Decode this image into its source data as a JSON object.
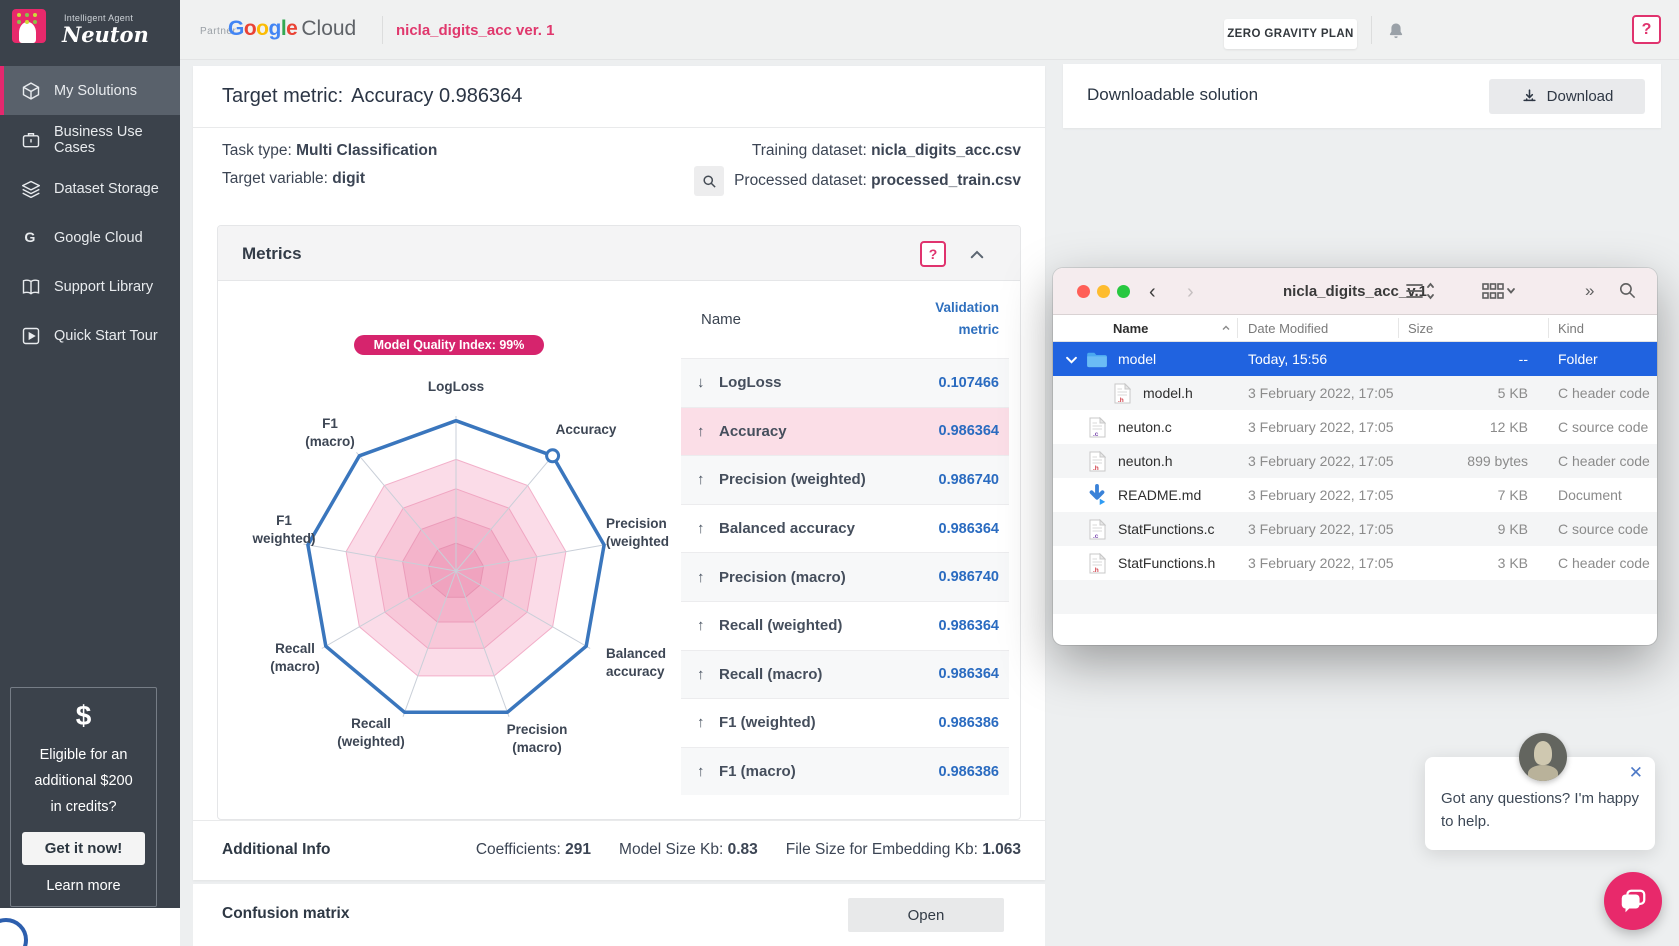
{
  "brand": {
    "logo_small": "Intelligent Agent",
    "logo_name": "Neuton",
    "partner_label": "Partner",
    "google_letters": [
      "G",
      "o",
      "o",
      "g",
      "l",
      "e"
    ],
    "google_colors": [
      "#4285F4",
      "#EA4335",
      "#FBBC05",
      "#4285F4",
      "#34A853",
      "#EA4335"
    ],
    "cloud": "Cloud",
    "project_title": "nicla_digits_acc ver. 1"
  },
  "topbar": {
    "plan_button": "ZERO GRAVITY PLAN",
    "help_button": "?"
  },
  "sidebar": {
    "items": [
      {
        "label": "My Solutions",
        "icon": "cube-icon",
        "active": true
      },
      {
        "label": "Business Use Cases",
        "icon": "briefcase-icon",
        "active": false
      },
      {
        "label": "Dataset Storage",
        "icon": "layers-icon",
        "active": false
      },
      {
        "label": "Google Cloud",
        "icon": "google-g-icon",
        "active": false
      },
      {
        "label": "Support Library",
        "icon": "book-icon",
        "active": false
      },
      {
        "label": "Quick Start Tour",
        "icon": "play-icon",
        "active": false
      }
    ],
    "credits": {
      "icon": "$",
      "text_lines": [
        "Eligible for an",
        "additional $200",
        "in credits?"
      ],
      "cta": "Get it now!",
      "link": "Learn more"
    }
  },
  "summary": {
    "target_metric_label": "Target metric:",
    "target_metric_value": "Accuracy 0.986364",
    "task_type_label": "Task type:",
    "task_type": "Multi Classification",
    "target_variable_label": "Target variable:",
    "target_variable": "digit",
    "training_label": "Training dataset:",
    "training_dataset": "nicla_digits_acc.csv",
    "processed_label": "Processed dataset:",
    "processed_dataset": "processed_train.csv"
  },
  "metrics_panel": {
    "title": "Metrics",
    "help_button": "?",
    "table": {
      "name_header": "Name",
      "value_header": [
        "Validation",
        "metric"
      ],
      "rows": [
        {
          "dir": "↓",
          "name": "LogLoss",
          "value": "0.107466",
          "highlight": false
        },
        {
          "dir": "↑",
          "name": "Accuracy",
          "value": "0.986364",
          "highlight": true
        },
        {
          "dir": "↑",
          "name": "Precision (weighted)",
          "value": "0.986740",
          "highlight": false
        },
        {
          "dir": "↑",
          "name": "Balanced accuracy",
          "value": "0.986364",
          "highlight": false
        },
        {
          "dir": "↑",
          "name": "Precision (macro)",
          "value": "0.986740",
          "highlight": false
        },
        {
          "dir": "↑",
          "name": "Recall (weighted)",
          "value": "0.986364",
          "highlight": false
        },
        {
          "dir": "↑",
          "name": "Recall (macro)",
          "value": "0.986364",
          "highlight": false
        },
        {
          "dir": "↑",
          "name": "F1 (weighted)",
          "value": "0.986386",
          "highlight": false
        },
        {
          "dir": "↑",
          "name": "F1 (macro)",
          "value": "0.986386",
          "highlight": false
        }
      ]
    }
  },
  "chart_data": {
    "type": "radar",
    "title_badge": "Model Quality Index: 99%",
    "axes": [
      [
        "LogLoss"
      ],
      [
        "Accuracy"
      ],
      [
        "Precision",
        "(weighted"
      ],
      [
        "Balanced",
        "accuracy"
      ],
      [
        "Precision",
        "(macro)"
      ],
      [
        "Recall",
        "(weighted)"
      ],
      [
        "Recall",
        "(macro)"
      ],
      [
        "F1",
        "weighted)"
      ],
      [
        "F1",
        "(macro)"
      ]
    ],
    "values": [
      0.97,
      0.97,
      0.97,
      0.97,
      0.97,
      0.97,
      0.97,
      0.97,
      0.97
    ],
    "marker_axis": 1,
    "grid_rings": [
      0.72,
      0.53,
      0.35,
      0.18
    ],
    "ring_fills": [
      "#fbdce8",
      "#f8c8d9",
      "#f4b4cb",
      "#f0a3bf"
    ],
    "ring_strokes": [
      "#f2afc9",
      "#f0a6c2",
      "#eb9cba",
      "#e793b2"
    ],
    "line_color": "#3a76bd",
    "spoke_color": "#c9cfd8",
    "badge_color": "#d6246d"
  },
  "additional_info": {
    "title": "Additional Info",
    "items": [
      {
        "label": "Coefficients:",
        "value": "291"
      },
      {
        "label": "Model Size Kb:",
        "value": "0.83"
      },
      {
        "label": "File Size for Embedding Kb:",
        "value": "1.063"
      }
    ]
  },
  "confusion": {
    "title": "Confusion matrix",
    "open_button": "Open"
  },
  "download_panel": {
    "title": "Downloadable solution",
    "button": "Download"
  },
  "finder": {
    "window_title": "nicla_digits_acc_v.1",
    "columns": [
      "Name",
      "Date Modified",
      "Size",
      "Kind"
    ],
    "rows": [
      {
        "name": "model",
        "date": "Today, 15:56",
        "size": "--",
        "kind": "Folder",
        "icon": "folder",
        "selected": true,
        "expanded": true,
        "indent": false
      },
      {
        "name": "model.h",
        "date": "3 February 2022, 17:05",
        "size": "5 KB",
        "kind": "C header code",
        "icon": "h-file",
        "selected": false,
        "indent": true
      },
      {
        "name": "neuton.c",
        "date": "3 February 2022, 17:05",
        "size": "12 KB",
        "kind": "C source code",
        "icon": "c-file",
        "selected": false,
        "indent": false
      },
      {
        "name": "neuton.h",
        "date": "3 February 2022, 17:05",
        "size": "899 bytes",
        "kind": "C header code",
        "icon": "h-file",
        "selected": false,
        "indent": false
      },
      {
        "name": "README.md",
        "date": "3 February 2022, 17:05",
        "size": "7 KB",
        "kind": "Document",
        "icon": "download-doc",
        "selected": false,
        "indent": false
      },
      {
        "name": "StatFunctions.c",
        "date": "3 February 2022, 17:05",
        "size": "9 KB",
        "kind": "C source code",
        "icon": "c-file",
        "selected": false,
        "indent": false
      },
      {
        "name": "StatFunctions.h",
        "date": "3 February 2022, 17:05",
        "size": "3 KB",
        "kind": "C header code",
        "icon": "h-file",
        "selected": false,
        "indent": false
      }
    ]
  },
  "chat": {
    "message": "Got any questions? I'm happy to help."
  }
}
